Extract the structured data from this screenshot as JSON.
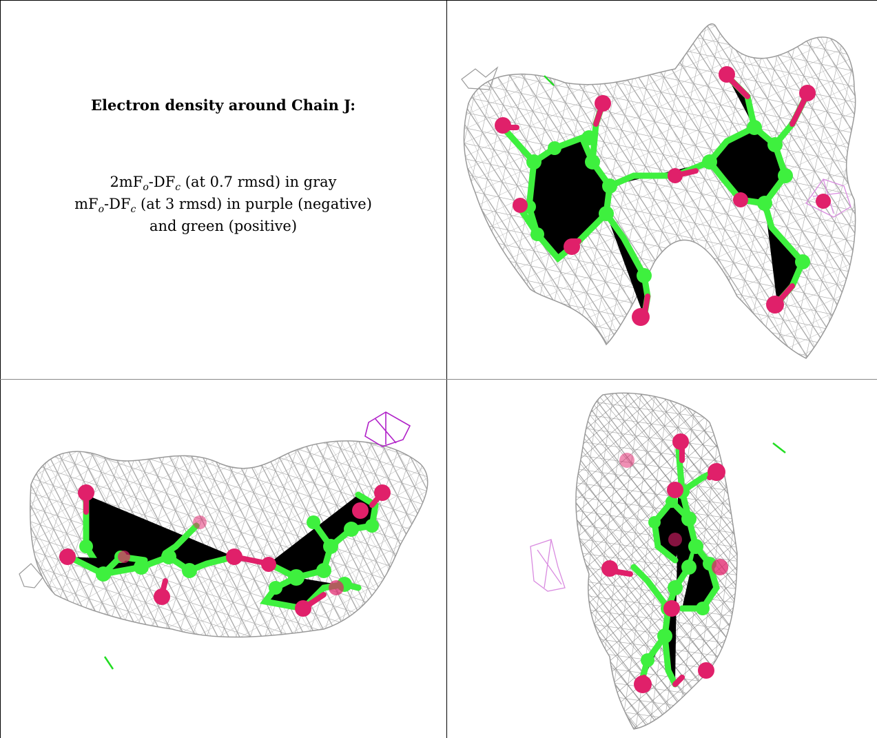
{
  "heading": "Electron density around Chain J:",
  "legend": {
    "line1": {
      "a": "2mF",
      "a_sub": "o",
      "b": "-DF",
      "b_sub": "c",
      "rest": " (at 0.7 rmsd) in gray"
    },
    "line2": {
      "a": "mF",
      "a_sub": "o",
      "b": "-DF",
      "b_sub": "c",
      "rest": " (at 3 rmsd) in purple (negative)"
    },
    "line3": "and green (positive)"
  },
  "colors": {
    "mesh_2fofc": "#9a9a9a",
    "mesh_negative": "#b020c8",
    "mesh_positive": "#22dd22",
    "carbon": "#3ef03e",
    "oxygen": "#e0206a"
  },
  "panels": [
    {
      "view": "top-right",
      "kind": "density-map"
    },
    {
      "view": "bottom-left",
      "kind": "density-map"
    },
    {
      "view": "bottom-right",
      "kind": "density-map"
    }
  ]
}
